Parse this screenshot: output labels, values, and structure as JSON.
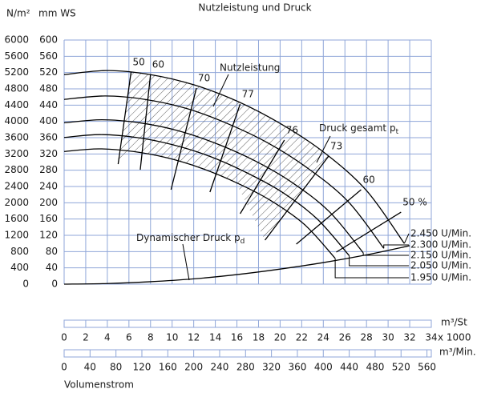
{
  "chart_data": {
    "type": "fan-curve",
    "title": "Nutzleistung und Druck",
    "y_label": "N/m²",
    "y2_label": "mm WS",
    "x_unit": "m³/St",
    "x_factor": "x 1000",
    "x2_unit": "m³/Min.",
    "x_title": "Volumenstrom",
    "xlim": [
      0,
      34
    ],
    "xticks": [
      0,
      2,
      4,
      6,
      8,
      10,
      12,
      14,
      16,
      18,
      20,
      22,
      24,
      26,
      28,
      30,
      32,
      34
    ],
    "x2lim": [
      0,
      566.7
    ],
    "x2ticks": [
      0,
      40,
      80,
      120,
      160,
      200,
      240,
      280,
      320,
      360,
      400,
      440,
      480,
      520,
      560
    ],
    "ylim": [
      0,
      6000
    ],
    "yticks": [
      0,
      400,
      800,
      1200,
      1600,
      2000,
      2400,
      2800,
      3200,
      3600,
      4000,
      4400,
      4800,
      5200,
      5600,
      6000
    ],
    "y2lim": [
      0,
      600
    ],
    "y2ticks": [
      0,
      40,
      80,
      120,
      160,
      200,
      240,
      280,
      320,
      360,
      400,
      440,
      480,
      520,
      560,
      600
    ],
    "grid": true,
    "color": "#000000",
    "grid_color": "#8fa6d8",
    "series": [
      {
        "name": "2.450 U/Min.",
        "x": [
          0,
          4,
          8,
          12,
          16,
          20,
          24,
          28,
          31.5
        ],
        "values": [
          5150,
          5250,
          5150,
          4900,
          4500,
          3950,
          3250,
          2300,
          1000
        ]
      },
      {
        "name": "2.300 U/Min.",
        "x": [
          0,
          3.8,
          7.5,
          11.3,
          15,
          18.8,
          22.5,
          26.3,
          29.6
        ],
        "values": [
          4540,
          4625,
          4540,
          4320,
          3960,
          3480,
          2860,
          2030,
          880
        ]
      },
      {
        "name": "2.150 U/Min.",
        "x": [
          0,
          3.5,
          7,
          10.5,
          14,
          17.6,
          21.1,
          24.6,
          27.7
        ],
        "values": [
          3965,
          4040,
          3965,
          3775,
          3465,
          3040,
          2500,
          1770,
          770
        ]
      },
      {
        "name": "2.050 U/Min.",
        "x": [
          0,
          3.3,
          6.7,
          10,
          13.4,
          16.7,
          20.1,
          23.4,
          26.4
        ],
        "values": [
          3605,
          3675,
          3605,
          3430,
          3150,
          2765,
          2275,
          1610,
          700
        ]
      },
      {
        "name": "1.950 U/Min.",
        "x": [
          0,
          3.2,
          6.4,
          9.6,
          12.7,
          15.9,
          19.1,
          22.3,
          25.1
        ],
        "values": [
          3260,
          3325,
          3260,
          3100,
          2850,
          2500,
          2060,
          1455,
          635
        ]
      }
    ],
    "dynamic": {
      "label": "Dynamischer Druck p",
      "label_sub": "d",
      "x": [
        0,
        4,
        8,
        12,
        16,
        20,
        24,
        28,
        32
      ],
      "values": [
        0,
        15,
        60,
        130,
        235,
        370,
        530,
        720,
        945
      ]
    },
    "efficiency": [
      {
        "label": "50",
        "x": [
          5.0,
          6.2
        ],
        "values": [
          2950,
          5213
        ]
      },
      {
        "label": "60",
        "x": [
          7.05,
          8.0
        ],
        "values": [
          2813,
          5154
        ]
      },
      {
        "label": "70",
        "x": [
          9.9,
          12.25
        ],
        "values": [
          2321,
          4820
        ]
      },
      {
        "label": "77",
        "x": [
          13.5,
          16.3
        ],
        "values": [
          2262,
          4426
        ]
      },
      {
        "label": "76",
        "x": [
          16.3,
          20.4
        ],
        "values": [
          1731,
          3541
        ]
      },
      {
        "label": "73",
        "x": [
          18.6,
          24.5
        ],
        "values": [
          1082,
          3148
        ]
      },
      {
        "label": "60",
        "x": [
          21.5,
          27.5
        ],
        "values": [
          984,
          2321
        ]
      },
      {
        "label": "50 %",
        "x": [
          25.2,
          31.2
        ],
        "values": [
          787,
          1770
        ]
      }
    ],
    "power_label": "Nutzleistung",
    "total_label": "Druck gesamt p",
    "total_label_sub": "t"
  }
}
